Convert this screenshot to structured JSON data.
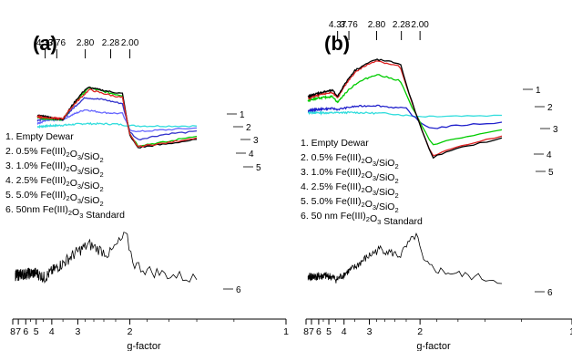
{
  "chart_data": [
    {
      "panel": "(a)",
      "type": "line",
      "xlabel": "g-factor",
      "x_ticks": [
        "8",
        "7",
        "6",
        "5",
        "4",
        "3",
        "2",
        "1"
      ],
      "top_marks": [
        "4.37",
        "3.76",
        "2.80",
        "2.28",
        "2.00"
      ],
      "top_mark_values": [
        4.37,
        3.76,
        2.8,
        2.28,
        2.0
      ],
      "x_range": [
        8,
        1
      ],
      "x_scale": "reciprocal",
      "legend": [
        {
          "num": "1.",
          "text": "Empty Dewar"
        },
        {
          "num": "2.",
          "text": "0.5% Fe(III)₂O₃/SiO₂"
        },
        {
          "num": "3.",
          "text": "1.0% Fe(III)₂O₃/SiO₂"
        },
        {
          "num": "4.",
          "text": "2.5% Fe(III)₂O₃/SiO₂"
        },
        {
          "num": "5.",
          "text": "5.0% Fe(III)₂O₃/SiO₂"
        },
        {
          "num": "6.",
          "text": "50nm Fe(III)₂O₃ Standard"
        }
      ],
      "curve_labels": [
        "1",
        "2",
        "3",
        "4",
        "5",
        "6"
      ],
      "series": [
        {
          "id": "1",
          "color": "#33dddd",
          "x": [
            4.9,
            3.5,
            2.8,
            2.2,
            2.0,
            1.8,
            1.4
          ],
          "y": [
            0.05,
            0.12,
            0.2,
            0.18,
            0.1,
            0.08,
            0.08
          ]
        },
        {
          "id": "2",
          "color": "#6666ff",
          "x": [
            4.9,
            4.37,
            3.5,
            2.8,
            2.4,
            2.1,
            2.0,
            1.9,
            1.6,
            1.4
          ],
          "y": [
            0.2,
            0.35,
            0.4,
            0.9,
            0.75,
            0.7,
            -0.1,
            -0.2,
            -0.1,
            -0.02
          ]
        },
        {
          "id": "3",
          "color": "#3333cc",
          "x": [
            4.9,
            4.37,
            3.5,
            2.8,
            2.4,
            2.1,
            2.0,
            1.9,
            1.6,
            1.4
          ],
          "y": [
            0.35,
            0.45,
            0.4,
            1.5,
            1.4,
            1.2,
            -0.2,
            -0.6,
            -0.3,
            -0.2
          ]
        },
        {
          "id": "4",
          "color": "#00cc00",
          "x": [
            4.9,
            4.37,
            3.5,
            2.8,
            2.7,
            2.1,
            2.0,
            1.9,
            1.6,
            1.4
          ],
          "y": [
            0.5,
            0.45,
            0.4,
            1.8,
            2.0,
            1.6,
            -0.3,
            -0.9,
            -0.7,
            -0.4
          ]
        },
        {
          "id": "5",
          "color": "#000000",
          "x": [
            4.9,
            4.37,
            3.5,
            2.8,
            2.7,
            2.1,
            2.0,
            1.9,
            1.6,
            1.4
          ],
          "y": [
            0.6,
            0.55,
            0.4,
            1.9,
            2.0,
            1.7,
            -0.4,
            -1.0,
            -0.8,
            -0.6
          ]
        },
        {
          "id": "red",
          "color": "#dd2222",
          "x": [
            4.9,
            4.37,
            3.5,
            2.8,
            2.7,
            2.1,
            2.0,
            1.9,
            1.6,
            1.4
          ],
          "y": [
            0.55,
            0.5,
            0.45,
            1.7,
            1.9,
            1.5,
            -0.35,
            -0.95,
            -0.75,
            -0.5
          ]
        },
        {
          "id": "6",
          "color": "#000000",
          "x": [
            7.5,
            5.0,
            4.4,
            3.5,
            2.7,
            2.3,
            2.05,
            1.95,
            1.8,
            1.4
          ],
          "y": [
            0.0,
            0.1,
            -0.1,
            0.5,
            1.3,
            0.9,
            1.7,
            0.5,
            0.2,
            -0.15
          ]
        }
      ]
    },
    {
      "panel": "(b)",
      "type": "line",
      "xlabel": "g-factor",
      "x_ticks": [
        "8",
        "7",
        "6",
        "5",
        "4",
        "3",
        "2",
        "1"
      ],
      "top_marks": [
        "4.37",
        "3.76",
        "2.80",
        "2.28",
        "2.00"
      ],
      "top_mark_values": [
        4.37,
        3.76,
        2.8,
        2.28,
        2.0
      ],
      "x_range": [
        8,
        1
      ],
      "x_scale": "reciprocal",
      "legend": [
        {
          "num": "1.",
          "text": "Empty Dewar"
        },
        {
          "num": "2.",
          "text": "0.5% Fe(III)₂O₃/SiO₂"
        },
        {
          "num": "3.",
          "text": "1.0% Fe(III)₂O₃/SiO₂"
        },
        {
          "num": "4.",
          "text": "2.5% Fe(III)₂O₃/SiO₂"
        },
        {
          "num": "5.",
          "text": "5.0% Fe(III)₂O₃/SiO₂"
        },
        {
          "num": "6.",
          "text": "50 nm Fe(III)₂O₃ Standard"
        }
      ],
      "curve_labels": [
        "1",
        "2",
        "3",
        "4",
        "5",
        "6"
      ],
      "series": [
        {
          "id": "1",
          "color": "#33dddd",
          "x": [
            7.6,
            5.0,
            3.5,
            2.5,
            2.0,
            1.8,
            1.3
          ],
          "y": [
            0.3,
            0.28,
            0.3,
            0.25,
            0.1,
            0.12,
            0.15
          ]
        },
        {
          "id": "2",
          "color": "#2222cc",
          "x": [
            7.6,
            4.7,
            4.37,
            3.5,
            2.8,
            2.2,
            2.0,
            1.85,
            1.6,
            1.3
          ],
          "y": [
            0.4,
            0.5,
            0.45,
            0.6,
            0.65,
            0.5,
            -0.2,
            -0.5,
            -0.35,
            -0.2
          ]
        },
        {
          "id": "3",
          "color": "#00cc00",
          "x": [
            7.6,
            4.7,
            4.37,
            3.5,
            2.8,
            2.3,
            2.0,
            1.85,
            1.6,
            1.3
          ],
          "y": [
            0.9,
            1.1,
            0.8,
            1.7,
            2.2,
            1.9,
            -0.2,
            -1.3,
            -1.0,
            -0.6
          ]
        },
        {
          "id": "4",
          "color": "#dd2222",
          "x": [
            7.6,
            4.7,
            4.37,
            3.5,
            2.8,
            2.3,
            2.0,
            1.85,
            1.6,
            1.3
          ],
          "y": [
            1.0,
            1.3,
            1.0,
            2.3,
            2.9,
            2.6,
            -0.3,
            -1.9,
            -1.4,
            -0.9
          ]
        },
        {
          "id": "5",
          "color": "#000000",
          "x": [
            7.6,
            4.7,
            4.37,
            3.5,
            2.8,
            2.3,
            2.0,
            1.85,
            1.6,
            1.3
          ],
          "y": [
            1.1,
            1.4,
            1.1,
            2.4,
            2.95,
            2.75,
            -0.3,
            -1.95,
            -1.5,
            -1.0
          ]
        },
        {
          "id": "6",
          "color": "#000000",
          "x": [
            7.6,
            5.0,
            4.4,
            3.5,
            2.7,
            2.3,
            2.05,
            1.95,
            1.8,
            1.3
          ],
          "y": [
            0.0,
            0.05,
            -0.1,
            0.4,
            1.2,
            0.9,
            1.8,
            0.6,
            0.3,
            -0.15
          ]
        }
      ]
    }
  ]
}
